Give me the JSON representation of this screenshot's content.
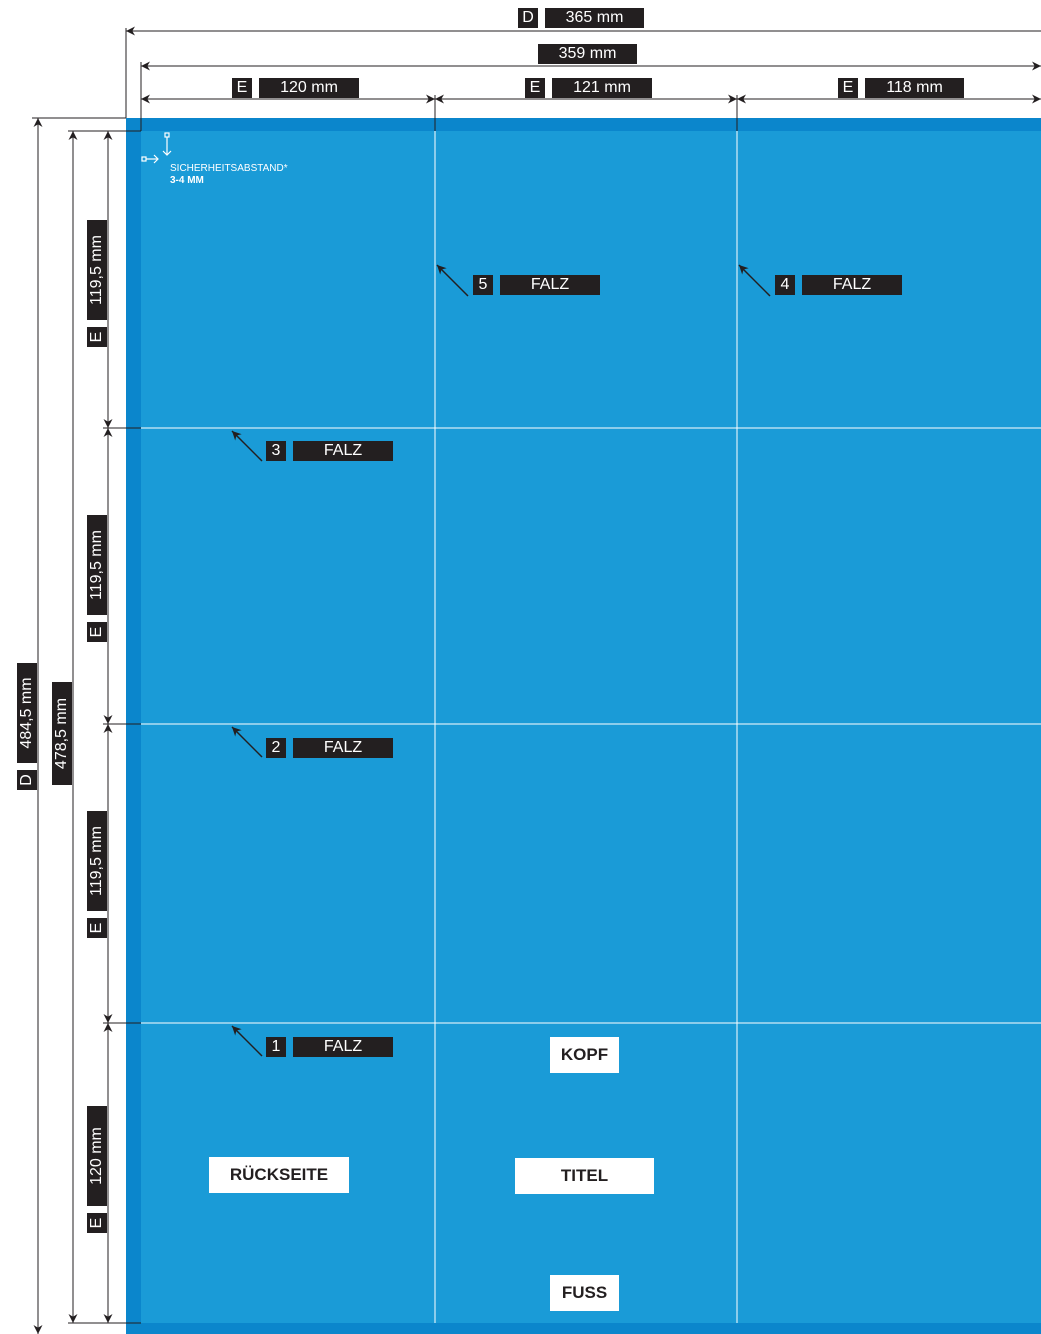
{
  "colors": {
    "panel": "#1a9bd7",
    "bleed": "#0b86cc",
    "label_bg": "#231f20",
    "fold_line": "#ffffff",
    "dim_line": "#231f20"
  },
  "dimensions": {
    "total_width": {
      "key": "D",
      "value": "365 mm"
    },
    "net_width": {
      "value": "359 mm"
    },
    "col1": {
      "key": "E",
      "value": "120 mm"
    },
    "col2": {
      "key": "E",
      "value": "121 mm"
    },
    "col3": {
      "key": "E",
      "value": "118 mm"
    },
    "total_height": {
      "key": "D",
      "value": "484,5 mm"
    },
    "net_height": {
      "value": "478,5 mm"
    },
    "row1": {
      "key": "E",
      "value": "119,5 mm"
    },
    "row2": {
      "key": "E",
      "value": "119,5 mm"
    },
    "row3": {
      "key": "E",
      "value": "119,5 mm"
    },
    "row4": {
      "key": "E",
      "value": "120 mm"
    }
  },
  "safety": {
    "label": "SICHERHEITSABSTAND*",
    "value": "3-4 MM"
  },
  "folds": [
    {
      "num": "5",
      "label": "FALZ"
    },
    {
      "num": "4",
      "label": "FALZ"
    },
    {
      "num": "3",
      "label": "FALZ"
    },
    {
      "num": "2",
      "label": "FALZ"
    },
    {
      "num": "1",
      "label": "FALZ"
    }
  ],
  "panels": {
    "back": "RÜCKSEITE",
    "head": "KOPF",
    "title": "TITEL",
    "foot": "FUSS"
  }
}
